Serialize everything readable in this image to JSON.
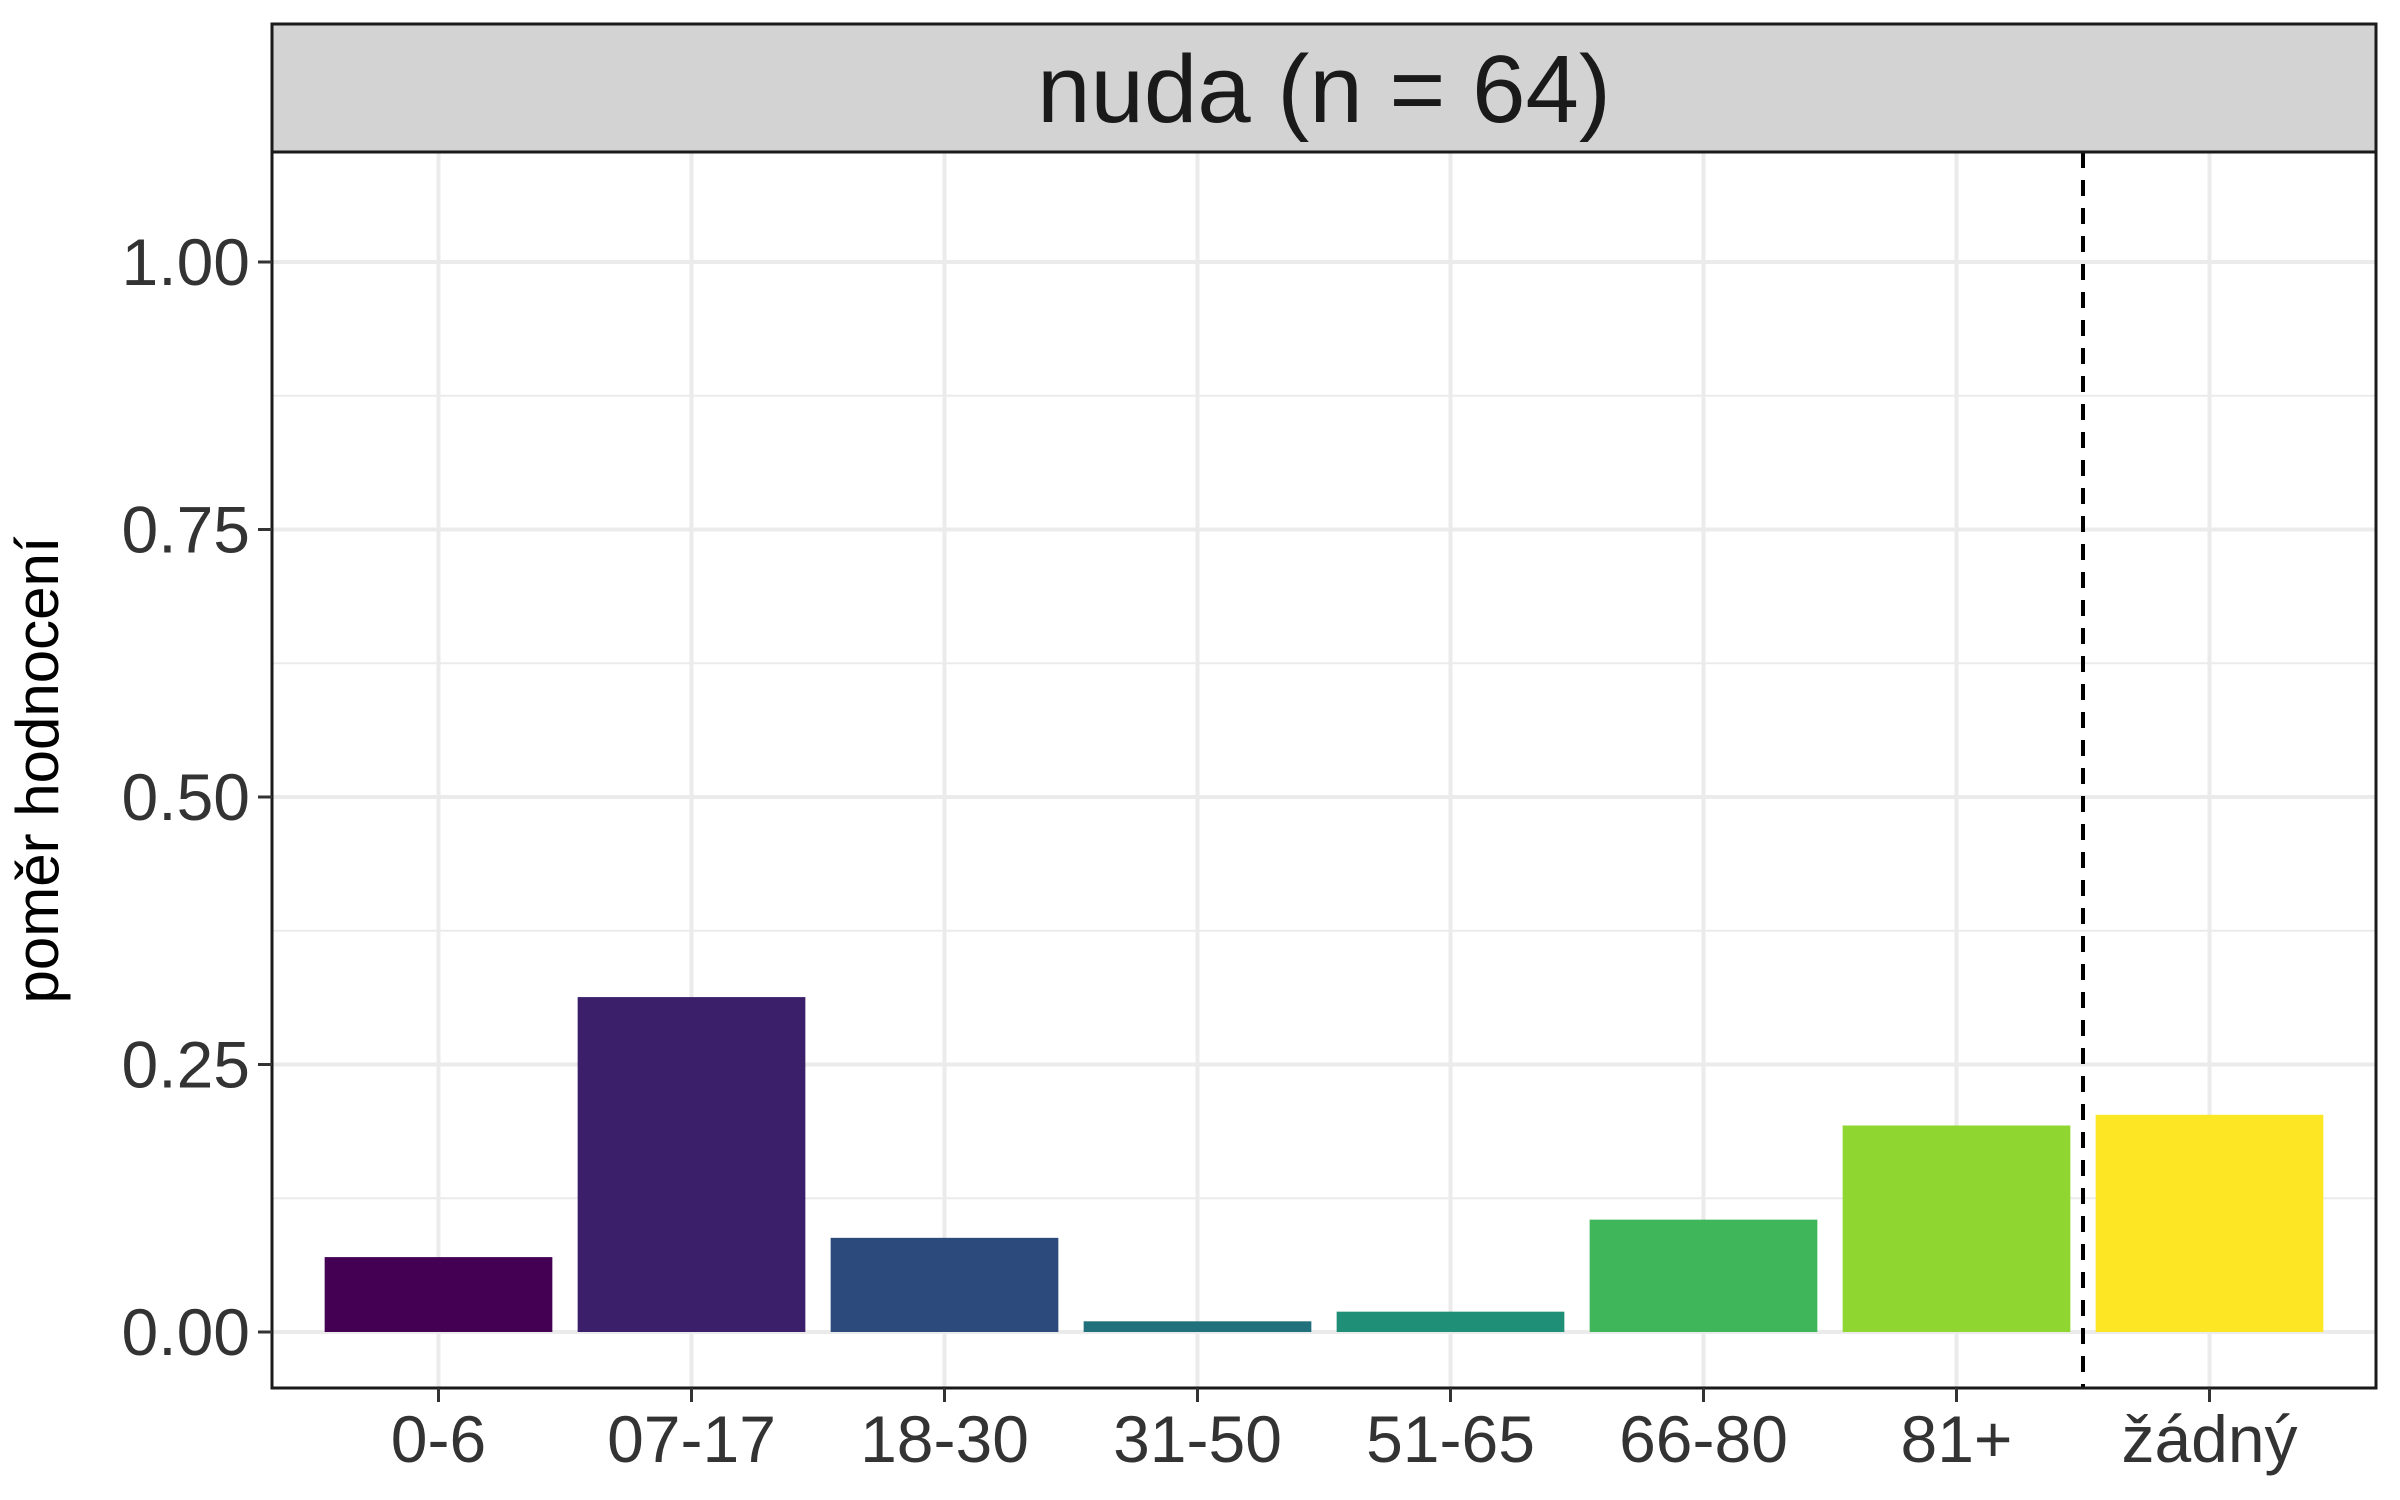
{
  "chart_data": {
    "type": "bar",
    "title": "nuda (n = 64)",
    "xlabel": "",
    "ylabel": "poměr hodnocení",
    "categories": [
      "0-6",
      "07-17",
      "18-30",
      "31-50",
      "51-65",
      "66-80",
      "81+",
      "žádný"
    ],
    "values": [
      0.07,
      0.313,
      0.088,
      0.01,
      0.019,
      0.105,
      0.193,
      0.203
    ],
    "colors": [
      "#440154",
      "#3b1f6b",
      "#2c4a7b",
      "#21717d",
      "#1f8f78",
      "#3fb659",
      "#8fd631",
      "#fde725"
    ],
    "ylim": [
      0,
      1.1
    ],
    "yticks": [
      0,
      0.25,
      0.5,
      0.75,
      1.0
    ],
    "ytick_labels": [
      "0.00",
      "0.25",
      "0.50",
      "0.75",
      "1.00"
    ],
    "separator_after_category": "81+",
    "grid": true,
    "legend": "none"
  }
}
